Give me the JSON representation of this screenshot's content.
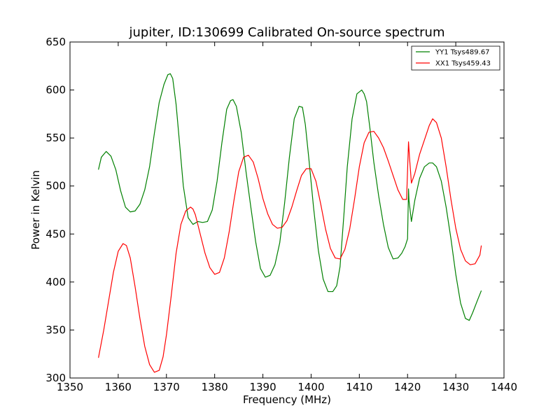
{
  "chart_data": {
    "type": "line",
    "title": "jupiter, ID:130699 Calibrated On-source spectrum",
    "xlabel": "Frequency (MHz)",
    "ylabel": "Power in Kelvin",
    "xlim": [
      1350,
      1440
    ],
    "ylim": [
      300,
      650
    ],
    "xticks": [
      1350,
      1360,
      1370,
      1380,
      1390,
      1400,
      1410,
      1420,
      1430,
      1440
    ],
    "yticks": [
      300,
      350,
      400,
      450,
      500,
      550,
      600,
      650
    ],
    "grid": false,
    "legend_position": "top-right",
    "series": [
      {
        "name": "YY1 Tsys489.67",
        "color": "#008000",
        "x": [
          1355.9,
          1356.5,
          1357.5,
          1358.5,
          1359.5,
          1360.5,
          1361.5,
          1362.5,
          1363.5,
          1364.5,
          1365.5,
          1366.5,
          1367.5,
          1368.5,
          1369.5,
          1370.3,
          1370.8,
          1371.3,
          1372.0,
          1372.8,
          1373.5,
          1374.5,
          1375.5,
          1376.5,
          1377.5,
          1378.5,
          1379.5,
          1380.5,
          1381.5,
          1382.5,
          1383.3,
          1383.8,
          1384.5,
          1385.5,
          1386.5,
          1387.5,
          1388.5,
          1389.5,
          1390.5,
          1391.5,
          1392.5,
          1393.5,
          1394.5,
          1395.5,
          1396.5,
          1397.5,
          1398.2,
          1398.8,
          1399.5,
          1400.5,
          1401.5,
          1402.5,
          1403.5,
          1404.5,
          1405.3,
          1406.0,
          1406.8,
          1407.5,
          1408.5,
          1409.5,
          1410.5,
          1411.0,
          1411.5,
          1412.2,
          1413.0,
          1414.0,
          1415.0,
          1416.0,
          1417.0,
          1418.0,
          1418.8,
          1419.5,
          1420.0,
          1420.2,
          1420.3,
          1420.8,
          1421.5,
          1422.5,
          1423.5,
          1424.5,
          1425.2,
          1426.0,
          1427.0,
          1428.0,
          1429.0,
          1430.0,
          1431.0,
          1432.0,
          1432.8,
          1433.5,
          1434.5,
          1435.3
        ],
        "values": [
          517,
          530,
          536,
          531,
          517,
          495,
          478,
          473,
          474,
          481,
          496,
          520,
          555,
          587,
          606,
          616,
          617,
          612,
          585,
          540,
          500,
          467,
          460,
          463,
          462,
          463,
          475,
          505,
          545,
          580,
          589,
          590,
          583,
          556,
          515,
          478,
          442,
          414,
          405,
          407,
          418,
          441,
          482,
          530,
          570,
          583,
          582,
          564,
          530,
          478,
          433,
          403,
          390,
          390,
          396,
          416,
          470,
          520,
          570,
          596,
          600,
          596,
          588,
          560,
          525,
          490,
          460,
          436,
          424,
          425,
          430,
          437,
          445,
          497,
          485,
          463,
          485,
          508,
          520,
          524,
          524,
          520,
          505,
          478,
          445,
          408,
          378,
          362,
          360,
          368,
          381,
          391
        ]
      },
      {
        "name": "XX1 Tsys459.43",
        "color": "#ff0000",
        "x": [
          1355.9,
          1357.0,
          1358.0,
          1359.0,
          1360.0,
          1361.0,
          1361.7,
          1362.5,
          1363.5,
          1364.5,
          1365.5,
          1366.5,
          1367.5,
          1368.5,
          1369.3,
          1370.0,
          1371.0,
          1372.0,
          1373.0,
          1374.0,
          1375.0,
          1375.5,
          1376.0,
          1377.0,
          1378.0,
          1379.0,
          1380.0,
          1381.0,
          1382.0,
          1383.0,
          1384.0,
          1385.0,
          1386.0,
          1387.0,
          1388.0,
          1389.0,
          1390.0,
          1391.0,
          1392.0,
          1393.0,
          1394.0,
          1395.0,
          1396.0,
          1397.0,
          1398.0,
          1399.0,
          1400.0,
          1401.0,
          1402.0,
          1403.0,
          1404.0,
          1405.0,
          1406.0,
          1407.0,
          1408.0,
          1409.0,
          1410.0,
          1411.0,
          1412.0,
          1413.0,
          1414.0,
          1415.0,
          1416.0,
          1417.0,
          1418.0,
          1419.0,
          1419.8,
          1420.2,
          1420.4,
          1420.8,
          1421.5,
          1422.5,
          1423.5,
          1424.5,
          1425.2,
          1426.0,
          1427.0,
          1428.0,
          1429.0,
          1430.0,
          1431.0,
          1432.0,
          1433.0,
          1434.0,
          1435.0,
          1435.3
        ],
        "values": [
          321,
          350,
          380,
          410,
          432,
          440,
          438,
          425,
          395,
          362,
          333,
          314,
          306,
          308,
          322,
          345,
          386,
          430,
          460,
          474,
          478,
          476,
          470,
          450,
          430,
          415,
          408,
          410,
          425,
          452,
          485,
          515,
          530,
          532,
          525,
          508,
          487,
          471,
          460,
          456,
          457,
          464,
          478,
          495,
          511,
          518,
          518,
          505,
          481,
          455,
          435,
          425,
          424,
          434,
          455,
          486,
          520,
          545,
          556,
          557,
          550,
          540,
          526,
          511,
          496,
          486,
          486,
          546,
          530,
          503,
          513,
          533,
          548,
          563,
          570,
          566,
          550,
          520,
          486,
          456,
          434,
          422,
          418,
          419,
          428,
          438
        ]
      }
    ]
  }
}
